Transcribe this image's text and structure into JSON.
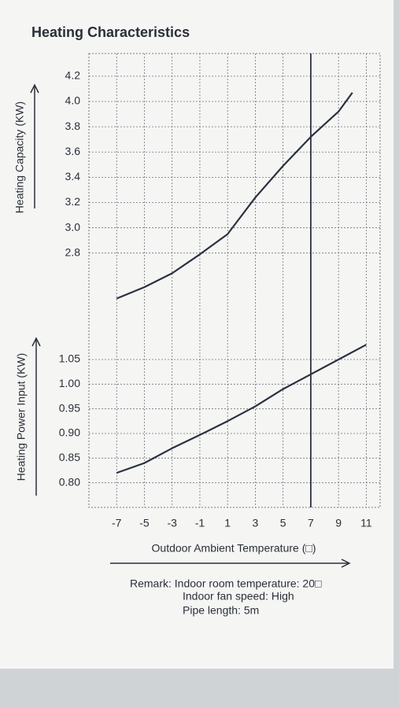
{
  "chart_data": [
    {
      "type": "line",
      "title": "Heating Characteristics",
      "ylabel": "Heating Capacity (KW)",
      "x": [
        -7,
        -5,
        -3,
        -1,
        1,
        3,
        5,
        7,
        9,
        10
      ],
      "values": [
        2.44,
        2.53,
        2.64,
        2.79,
        2.95,
        3.24,
        3.49,
        3.72,
        3.92,
        4.07
      ],
      "color": "#2b3140",
      "xlim": [
        -9,
        12
      ],
      "ylim": [
        2.25,
        4.38
      ],
      "yticks": [
        {
          "value": 2.8,
          "label": "2.8"
        },
        {
          "value": 3,
          "label": "3.0"
        },
        3.2,
        3.4,
        3.6,
        3.8,
        {
          "value": 4,
          "label": "4.0"
        },
        4.2
      ],
      "grid": true
    },
    {
      "type": "line",
      "ylabel": "Heating Power Input (KW)",
      "xlabel": "Outdoor Ambient Temperature (□)",
      "x": [
        -7,
        -5,
        -3,
        -1,
        1,
        3,
        5,
        7,
        9,
        11
      ],
      "values": [
        0.82,
        0.84,
        0.87,
        0.897,
        0.925,
        0.955,
        0.99,
        1.02,
        1.05,
        1.08
      ],
      "color": "#2b3140",
      "xlim": [
        -9,
        12
      ],
      "ylim": [
        0.75,
        1.125
      ],
      "xticks": [
        -7,
        -5,
        -3,
        -1,
        1,
        3,
        5,
        7,
        9,
        11
      ],
      "yticks": [
        {
          "value": 0.8,
          "label": "0.80"
        },
        0.85,
        {
          "value": 0.9,
          "label": "0.90"
        },
        0.95,
        {
          "value": 1,
          "label": "1.00"
        },
        1.05
      ],
      "reference_x": 7,
      "grid": true
    }
  ],
  "remarks": [
    "Remark: Indoor room temperature: 20□",
    "Indoor fan speed: High",
    "Pipe length: 5m"
  ]
}
